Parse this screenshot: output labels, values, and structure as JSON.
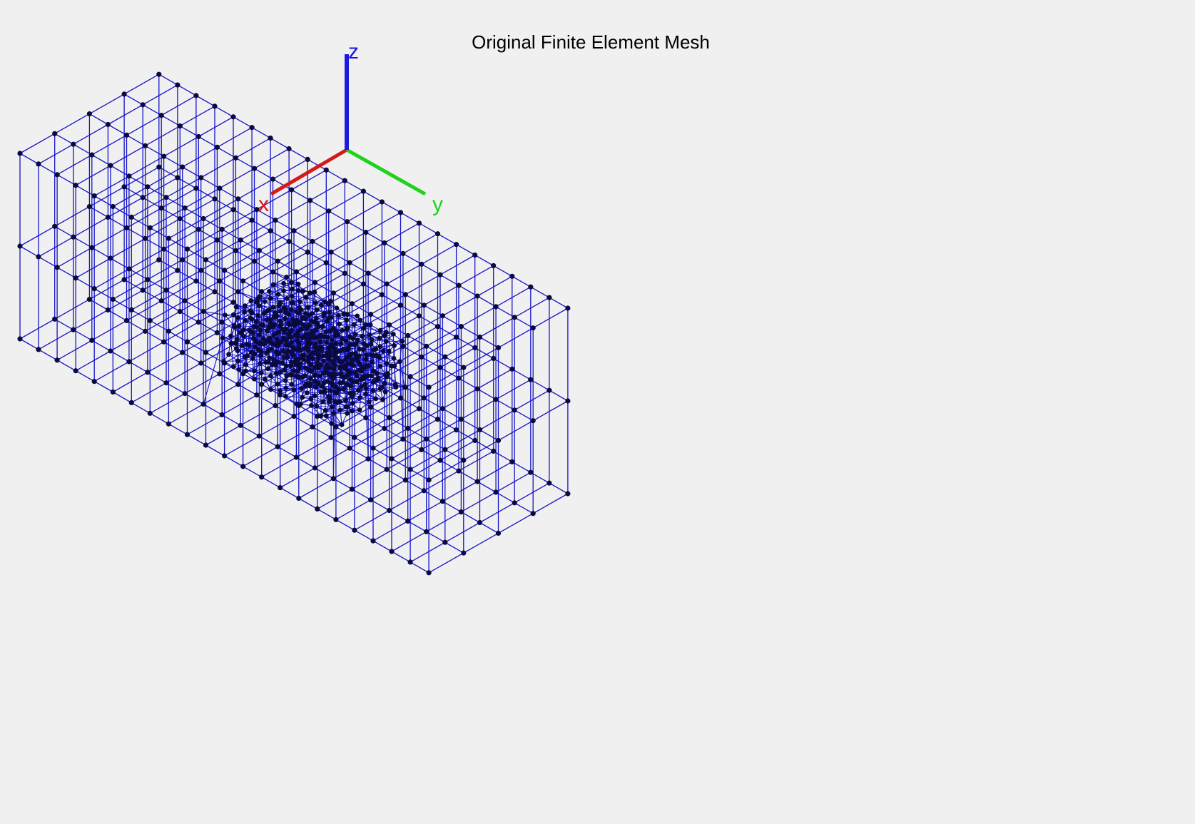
{
  "figure": {
    "title": "Original Finite Element Mesh",
    "background_color": "#f0f0f0"
  },
  "triad": {
    "x_label": "x",
    "y_label": "y",
    "z_label": "z",
    "x_color": "#d21a1a",
    "y_color": "#1fd21a",
    "z_color": "#1a1ae0"
  },
  "mesh": {
    "element_color": "#1414c8",
    "node_color": "#0a0a3c",
    "outer_grid": {
      "elements_long": 11,
      "elements_wide": 4,
      "layers": 2
    },
    "refined_region": {
      "columns": 14,
      "rows": 10,
      "layers": 2
    }
  }
}
